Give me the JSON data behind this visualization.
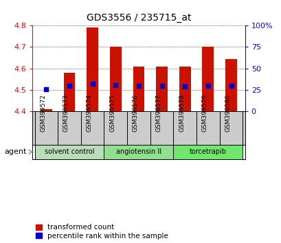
{
  "title": "GDS3556 / 235715_at",
  "samples": [
    "GSM399572",
    "GSM399573",
    "GSM399574",
    "GSM399575",
    "GSM399576",
    "GSM399577",
    "GSM399578",
    "GSM399579",
    "GSM399580"
  ],
  "transformed_count": [
    4.41,
    4.58,
    4.79,
    4.7,
    4.61,
    4.61,
    4.61,
    4.7,
    4.645
  ],
  "percentile_rank": [
    26,
    30,
    32,
    31,
    30,
    30,
    29,
    30,
    30
  ],
  "ylim_left": [
    4.4,
    4.8
  ],
  "ylim_right": [
    0,
    100
  ],
  "yticks_left": [
    4.4,
    4.5,
    4.6,
    4.7,
    4.8
  ],
  "yticks_right": [
    0,
    25,
    50,
    75,
    100
  ],
  "ytick_labels_right": [
    "0",
    "25",
    "50",
    "75",
    "100%"
  ],
  "agent_groups": [
    {
      "label": "solvent control",
      "samples": [
        "GSM399572",
        "GSM399573",
        "GSM399574"
      ],
      "color": "#b8ddb8"
    },
    {
      "label": "angiotensin II",
      "samples": [
        "GSM399575",
        "GSM399576",
        "GSM399577"
      ],
      "color": "#90e090"
    },
    {
      "label": "torcetrapib",
      "samples": [
        "GSM399578",
        "GSM399579",
        "GSM399580"
      ],
      "color": "#70e870"
    }
  ],
  "bar_color": "#cc1100",
  "dot_color": "#0000cc",
  "bar_width": 0.5,
  "dot_size": 18,
  "baseline": 4.4,
  "bg_color": "#ffffff",
  "sample_bg_color": "#cccccc",
  "agent_label": "agent",
  "legend_tc": "transformed count",
  "legend_pr": "percentile rank within the sample"
}
